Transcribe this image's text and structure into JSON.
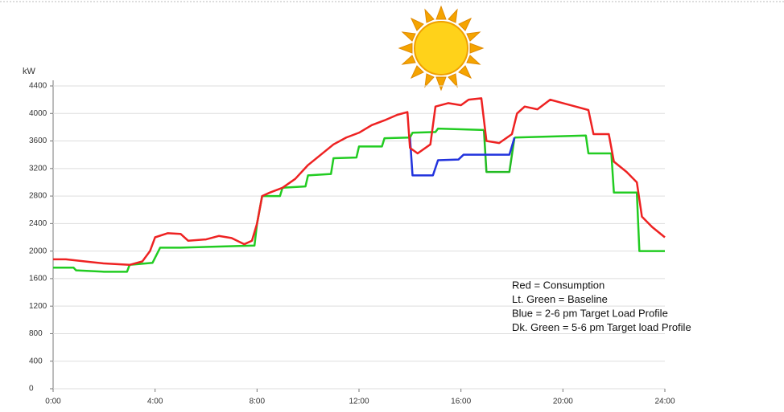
{
  "chart_data": {
    "type": "line",
    "y_label": "kW",
    "x": [],
    "xlim": [
      0,
      24
    ],
    "xticks": [
      {
        "value": 0,
        "label": "0:00"
      },
      {
        "value": 4,
        "label": "4:00"
      },
      {
        "value": 8,
        "label": "8:00"
      },
      {
        "value": 12,
        "label": "12:00"
      },
      {
        "value": 16,
        "label": "16:00"
      },
      {
        "value": 20,
        "label": "20:00"
      },
      {
        "value": 24,
        "label": "24:00"
      }
    ],
    "ylim": [
      0,
      4400
    ],
    "yticks": [
      0,
      400,
      800,
      1200,
      1600,
      2000,
      2400,
      2800,
      3200,
      3600,
      4000,
      4400
    ],
    "grid": true,
    "series": [
      {
        "color": "#22cc22",
        "x": [
          0,
          0.8,
          0.9,
          2,
          2.9,
          3,
          3.9,
          4.2,
          5,
          7.9,
          8,
          8.2,
          8.9,
          9,
          9.9,
          10,
          10.9,
          11,
          11.9,
          12,
          12.9,
          13,
          14,
          14.1,
          15,
          15.1,
          16.9,
          17.5,
          18.1,
          20.9,
          21,
          21.9,
          22,
          22.9,
          23,
          24
        ],
        "values": [
          1760,
          1760,
          1720,
          1700,
          1700,
          1800,
          1830,
          2050,
          2050,
          2080,
          2400,
          2800,
          2800,
          2920,
          2940,
          3100,
          3120,
          3350,
          3360,
          3520,
          3520,
          3640,
          3650,
          3720,
          3730,
          3780,
          3760,
          null,
          3650,
          3680,
          3420,
          3420,
          2850,
          2850,
          2000,
          2000
        ]
      },
      {
        "color": "#22bb22",
        "x": [
          16.9,
          17,
          17.9,
          18.1
        ],
        "values": [
          3760,
          3150,
          3150,
          3650
        ]
      },
      {
        "color": "#2233dd",
        "x": [
          14,
          14.1,
          14.9,
          15.1,
          15.9,
          16.1,
          17.9,
          18.1
        ],
        "values": [
          3650,
          3100,
          3100,
          3320,
          3330,
          3400,
          3400,
          3650
        ]
      },
      {
        "color": "#ee2222",
        "x": [
          0,
          0.5,
          1,
          1.5,
          2,
          2.5,
          3,
          3.5,
          3.8,
          4,
          4.5,
          5,
          5.3,
          6,
          6.5,
          7,
          7.5,
          7.8,
          8,
          8.2,
          8.5,
          9,
          9.5,
          10,
          10.5,
          11,
          11.5,
          12,
          12.5,
          13,
          13.5,
          13.9,
          14,
          14.3,
          14.8,
          15,
          15.5,
          16,
          16.3,
          16.8,
          17,
          17.5,
          18,
          18.2,
          18.5,
          19,
          19.5,
          20,
          20.5,
          21,
          21.2,
          21.8,
          22,
          22.5,
          22.9,
          23.1,
          23.5,
          24
        ],
        "values": [
          1880,
          1880,
          1860,
          1840,
          1820,
          1810,
          1800,
          1850,
          2000,
          2200,
          2260,
          2250,
          2150,
          2170,
          2220,
          2190,
          2100,
          2150,
          2400,
          2800,
          2850,
          2920,
          3050,
          3250,
          3400,
          3550,
          3650,
          3720,
          3830,
          3900,
          3980,
          4020,
          3500,
          3420,
          3550,
          4100,
          4150,
          4120,
          4200,
          4220,
          3600,
          3570,
          3700,
          4000,
          4100,
          4060,
          4200,
          4150,
          4100,
          4050,
          3700,
          3700,
          3300,
          3150,
          3000,
          2500,
          2350,
          2200
        ]
      }
    ],
    "annotations": [
      "Red = Consumption",
      "Lt. Green  = Baseline",
      "Blue = 2-6 pm  Target Load  Profile",
      "Dk. Green  = 5-6 pm  Target load Profile"
    ]
  }
}
